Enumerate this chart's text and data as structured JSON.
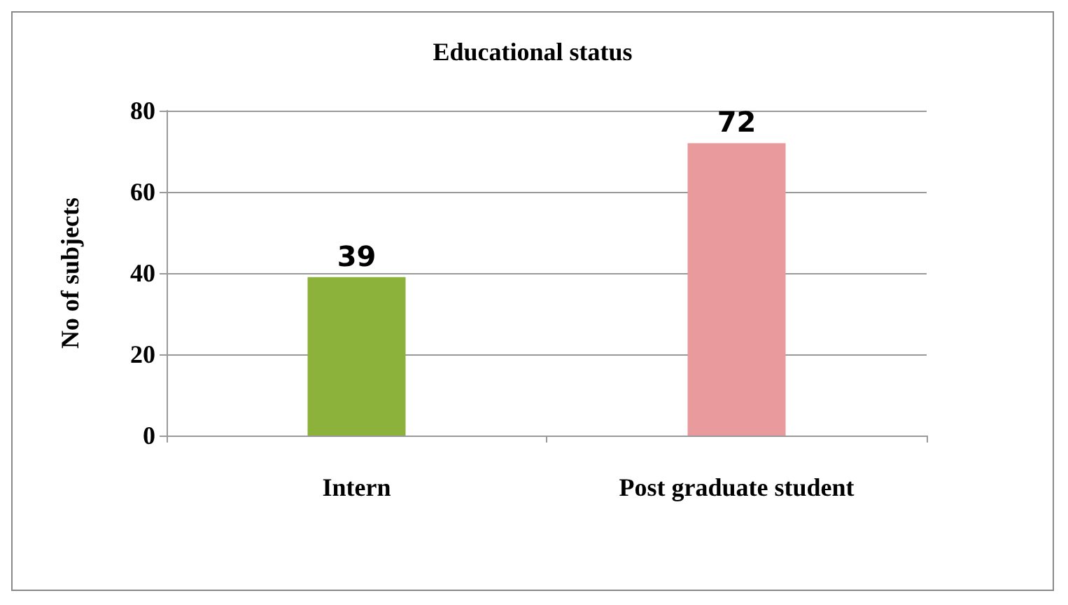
{
  "chart_data": {
    "type": "bar",
    "title": "Educational status",
    "ylabel": "No of subjects",
    "categories": [
      "Intern",
      "Post graduate student"
    ],
    "values": [
      39,
      72
    ],
    "colors": [
      "#8db23c",
      "#e99a9c"
    ],
    "ylim": [
      0,
      80
    ],
    "yticks": [
      0,
      20,
      40,
      60,
      80
    ],
    "grid": "y",
    "data_labels": true
  }
}
